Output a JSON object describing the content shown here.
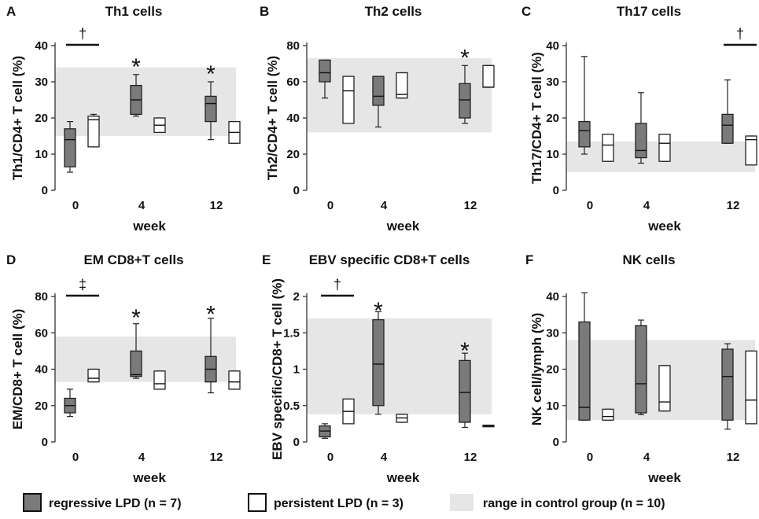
{
  "figure": {
    "legend": {
      "regressive": "regressive LPD (n = 7)",
      "persistent": "persistent LPD (n = 3)",
      "control": "range in control group (n = 10)"
    },
    "colors": {
      "regressive": "#7a7a7a",
      "persistent": "#ffffff",
      "control": "#e6e6e6",
      "stroke": "#222222"
    }
  },
  "chart_data": [
    {
      "id": "A",
      "type": "box",
      "title": "Th1 cells",
      "panel_label": "A",
      "ylabel": "Th1/CD4+ T cell (%)",
      "xlabel": "week",
      "ylim": [
        0,
        40
      ],
      "yticks": [
        "0",
        "10",
        "20",
        "30",
        "40"
      ],
      "ytick_values": [
        0,
        10,
        20,
        30,
        40
      ],
      "categories": [
        "0",
        "4",
        "12"
      ],
      "control_range": [
        15,
        34
      ],
      "series": [
        {
          "name": "regressive LPD (n = 7)",
          "boxes": [
            {
              "min": 5,
              "q1": 6.5,
              "median": 14,
              "q3": 17,
              "max": 19
            },
            {
              "min": 20.5,
              "q1": 21,
              "median": 25,
              "q3": 29,
              "max": 32
            },
            {
              "min": 14,
              "q1": 19,
              "median": 24,
              "q3": 26,
              "max": 30
            }
          ]
        },
        {
          "name": "persistent LPD (n = 3)",
          "boxes": [
            {
              "min": 12,
              "q1": 12,
              "median": 19.5,
              "q3": 20.5,
              "max": 21
            },
            {
              "min": 16,
              "q1": 16,
              "median": 18,
              "q3": 20,
              "max": 20
            },
            {
              "min": 13,
              "q1": 13,
              "median": 16,
              "q3": 19,
              "max": 19
            }
          ]
        }
      ],
      "annotations": [
        {
          "text": "†",
          "type": "bracket",
          "category": "0"
        },
        {
          "text": "*",
          "type": "star",
          "category": "4",
          "value": 35
        },
        {
          "text": "*",
          "type": "star",
          "category": "12",
          "value": 33
        }
      ]
    },
    {
      "id": "B",
      "type": "box",
      "title": "Th2 cells",
      "panel_label": "B",
      "ylabel": "Th2/CD4+ T cell (%)",
      "xlabel": "week",
      "ylim": [
        0,
        80
      ],
      "yticks": [
        "0",
        "20",
        "40",
        "60",
        "80"
      ],
      "ytick_values": [
        0,
        20,
        40,
        60,
        80
      ],
      "categories": [
        "0",
        "4",
        "12"
      ],
      "control_range": [
        32,
        73
      ],
      "series": [
        {
          "name": "regressive LPD (n = 7)",
          "boxes": [
            {
              "min": 51,
              "q1": 60,
              "median": 65,
              "q3": 72,
              "max": 72
            },
            {
              "min": 35,
              "q1": 47,
              "median": 52,
              "q3": 63,
              "max": 63
            },
            {
              "min": 37,
              "q1": 40,
              "median": 50,
              "q3": 59,
              "max": 69
            }
          ]
        },
        {
          "name": "persistent LPD (n = 3)",
          "boxes": [
            {
              "min": 37,
              "q1": 37,
              "median": 55,
              "q3": 63,
              "max": 63
            },
            {
              "min": 51,
              "q1": 51,
              "median": 53,
              "q3": 65,
              "max": 65
            },
            {
              "min": 57,
              "q1": 57,
              "median": 57,
              "q3": 69,
              "max": 69
            }
          ]
        }
      ],
      "annotations": [
        {
          "text": "*",
          "type": "star",
          "category": "12",
          "value": 75
        }
      ]
    },
    {
      "id": "C",
      "type": "box",
      "title": "Th17 cells",
      "panel_label": "C",
      "ylabel": "Th17/CD4+ T cell (%)",
      "xlabel": "week",
      "ylim": [
        0,
        40
      ],
      "yticks": [
        "0",
        "10",
        "20",
        "30",
        "40"
      ],
      "ytick_values": [
        0,
        10,
        20,
        30,
        40
      ],
      "categories": [
        "0",
        "4",
        "12"
      ],
      "control_range": [
        5,
        13.5
      ],
      "series": [
        {
          "name": "regressive LPD (n = 7)",
          "boxes": [
            {
              "min": 10,
              "q1": 12,
              "median": 16.5,
              "q3": 19,
              "max": 37
            },
            {
              "min": 7.5,
              "q1": 9,
              "median": 11,
              "q3": 18.5,
              "max": 27
            },
            {
              "min": 13,
              "q1": 13,
              "median": 18,
              "q3": 21,
              "max": 30.5
            }
          ]
        },
        {
          "name": "persistent LPD (n = 3)",
          "boxes": [
            {
              "min": 8,
              "q1": 8,
              "median": 12.5,
              "q3": 15.5,
              "max": 15.5
            },
            {
              "min": 8,
              "q1": 8,
              "median": 13,
              "q3": 15.5,
              "max": 15.5
            },
            {
              "min": 7,
              "q1": 7,
              "median": 14,
              "q3": 15,
              "max": 15
            }
          ]
        }
      ],
      "annotations": [
        {
          "text": "†",
          "type": "bracket",
          "category": "12"
        }
      ]
    },
    {
      "id": "D",
      "type": "box",
      "title": "EM CD8+T cells",
      "panel_label": "D",
      "ylabel": "EM/CD8+ T cell (%)",
      "xlabel": "week",
      "ylim": [
        0,
        80
      ],
      "yticks": [
        "0",
        "20",
        "40",
        "60",
        "80"
      ],
      "ytick_values": [
        0,
        20,
        40,
        60,
        80
      ],
      "categories": [
        "0",
        "4",
        "12"
      ],
      "control_range": [
        33,
        58
      ],
      "series": [
        {
          "name": "regressive LPD (n = 7)",
          "boxes": [
            {
              "min": 14,
              "q1": 16,
              "median": 20,
              "q3": 24,
              "max": 29
            },
            {
              "min": 35,
              "q1": 36,
              "median": 37,
              "q3": 50,
              "max": 65
            },
            {
              "min": 27,
              "q1": 33,
              "median": 40,
              "q3": 47,
              "max": 68
            }
          ]
        },
        {
          "name": "persistent LPD (n = 3)",
          "boxes": [
            {
              "min": 33,
              "q1": 33,
              "median": 35,
              "q3": 40,
              "max": 40
            },
            {
              "min": 29,
              "q1": 29,
              "median": 32,
              "q3": 39,
              "max": 39
            },
            {
              "min": 29,
              "q1": 29,
              "median": 33,
              "q3": 39,
              "max": 39
            }
          ]
        }
      ],
      "annotations": [
        {
          "text": "‡",
          "type": "bracket",
          "category": "0"
        },
        {
          "text": "*",
          "type": "star",
          "category": "4",
          "value": 70
        },
        {
          "text": "*",
          "type": "star",
          "category": "12",
          "value": 72
        }
      ]
    },
    {
      "id": "E",
      "type": "box",
      "title": "EBV specific CD8+T cells",
      "panel_label": "E",
      "ylabel": "EBV specific/CD8+ T cell (%)",
      "xlabel": "week",
      "ylim": [
        0,
        2
      ],
      "yticks": [
        "0",
        "0.5",
        "1",
        "1.5",
        "2"
      ],
      "ytick_values": [
        0,
        0.5,
        1,
        1.5,
        2
      ],
      "categories": [
        "0",
        "4",
        "12"
      ],
      "control_range": [
        0.38,
        1.7
      ],
      "series": [
        {
          "name": "regressive LPD (n = 7)",
          "boxes": [
            {
              "min": 0.05,
              "q1": 0.07,
              "median": 0.15,
              "q3": 0.22,
              "max": 0.25
            },
            {
              "min": 0.38,
              "q1": 0.5,
              "median": 1.07,
              "q3": 1.68,
              "max": 1.79
            },
            {
              "min": 0.2,
              "q1": 0.27,
              "median": 0.68,
              "q3": 1.12,
              "max": 1.22
            }
          ]
        },
        {
          "name": "persistent LPD (n = 3)",
          "boxes": [
            {
              "min": 0.25,
              "q1": 0.25,
              "median": 0.42,
              "q3": 0.59,
              "max": 0.59
            },
            {
              "min": 0.27,
              "q1": 0.27,
              "median": 0.33,
              "q3": 0.38,
              "max": 0.38
            },
            {
              "min": 0.22,
              "q1": 0.22,
              "median": 0.22,
              "q3": 0.23,
              "max": 0.23
            }
          ]
        }
      ],
      "annotations": [
        {
          "text": "†",
          "type": "bracket",
          "category": "0"
        },
        {
          "text": "*",
          "type": "star",
          "category": "4",
          "value": 1.85
        },
        {
          "text": "*",
          "type": "star",
          "category": "12",
          "value": 1.3
        }
      ]
    },
    {
      "id": "F",
      "type": "box",
      "title": "NK cells",
      "panel_label": "F",
      "ylabel": "NK cell/lymph (%)",
      "xlabel": "week",
      "ylim": [
        0,
        40
      ],
      "yticks": [
        "0",
        "10",
        "20",
        "30",
        "40"
      ],
      "ytick_values": [
        0,
        10,
        20,
        30,
        40
      ],
      "categories": [
        "0",
        "4",
        "12"
      ],
      "control_range": [
        6,
        28
      ],
      "series": [
        {
          "name": "regressive LPD (n = 7)",
          "boxes": [
            {
              "min": 6,
              "q1": 6,
              "median": 9.5,
              "q3": 33,
              "max": 41
            },
            {
              "min": 7.5,
              "q1": 8,
              "median": 16,
              "q3": 32,
              "max": 33.5
            },
            {
              "min": 3.5,
              "q1": 6,
              "median": 18,
              "q3": 25.5,
              "max": 27
            }
          ]
        },
        {
          "name": "persistent LPD (n = 3)",
          "boxes": [
            {
              "min": 6,
              "q1": 6,
              "median": 7,
              "q3": 9,
              "max": 9
            },
            {
              "min": 8.5,
              "q1": 8.5,
              "median": 11,
              "q3": 21,
              "max": 21
            },
            {
              "min": 5,
              "q1": 5,
              "median": 11.5,
              "q3": 25,
              "max": 25
            }
          ]
        }
      ],
      "annotations": []
    }
  ]
}
